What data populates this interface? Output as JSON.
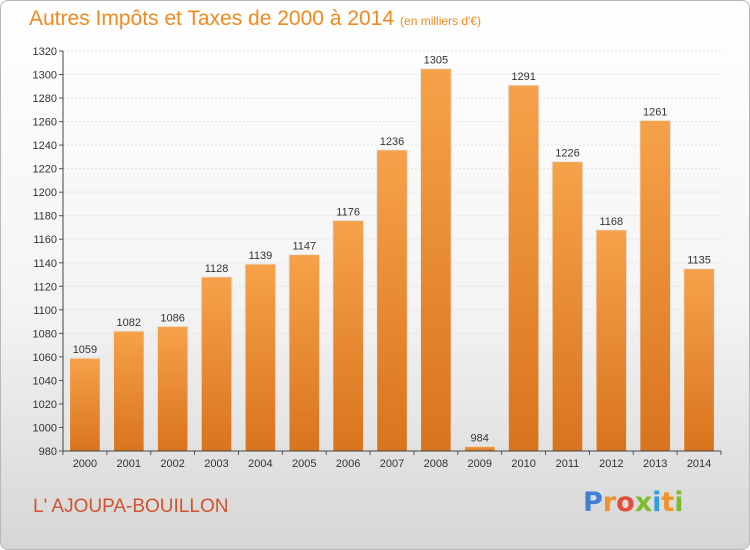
{
  "header": {
    "title": "Autres Impôts et Taxes de 2000 à 2014",
    "unit": "(en milliers d'€)"
  },
  "footer": {
    "commune": "L' AJOUPA-BOUILLON",
    "logo_letters": [
      "P",
      "r",
      "o",
      "x",
      "i",
      "t",
      "i"
    ],
    "logo_colors": [
      "#3f7fd6",
      "#f0932b",
      "#e14e3c",
      "#7cbd2f",
      "#2f9ee0",
      "#f0932b",
      "#7cbd2f"
    ]
  },
  "colors": {
    "bar_top": "#f6a24a",
    "bar_bottom": "#d9741e",
    "title": "#f08a1c"
  },
  "chart_data": {
    "type": "bar",
    "title": "Autres Impôts et Taxes de 2000 à 2014",
    "xlabel": "",
    "ylabel": "",
    "ylim": [
      980,
      1320
    ],
    "y_ticks": [
      980,
      1000,
      1020,
      1040,
      1060,
      1080,
      1100,
      1120,
      1140,
      1160,
      1180,
      1200,
      1220,
      1240,
      1260,
      1280,
      1300,
      1320
    ],
    "grid": true,
    "categories": [
      "2000",
      "2001",
      "2002",
      "2003",
      "2004",
      "2005",
      "2006",
      "2007",
      "2008",
      "2009",
      "2010",
      "2011",
      "2012",
      "2013",
      "2014"
    ],
    "values": [
      1059,
      1082,
      1086,
      1128,
      1139,
      1147,
      1176,
      1236,
      1305,
      984,
      1291,
      1226,
      1168,
      1261,
      1135
    ]
  }
}
